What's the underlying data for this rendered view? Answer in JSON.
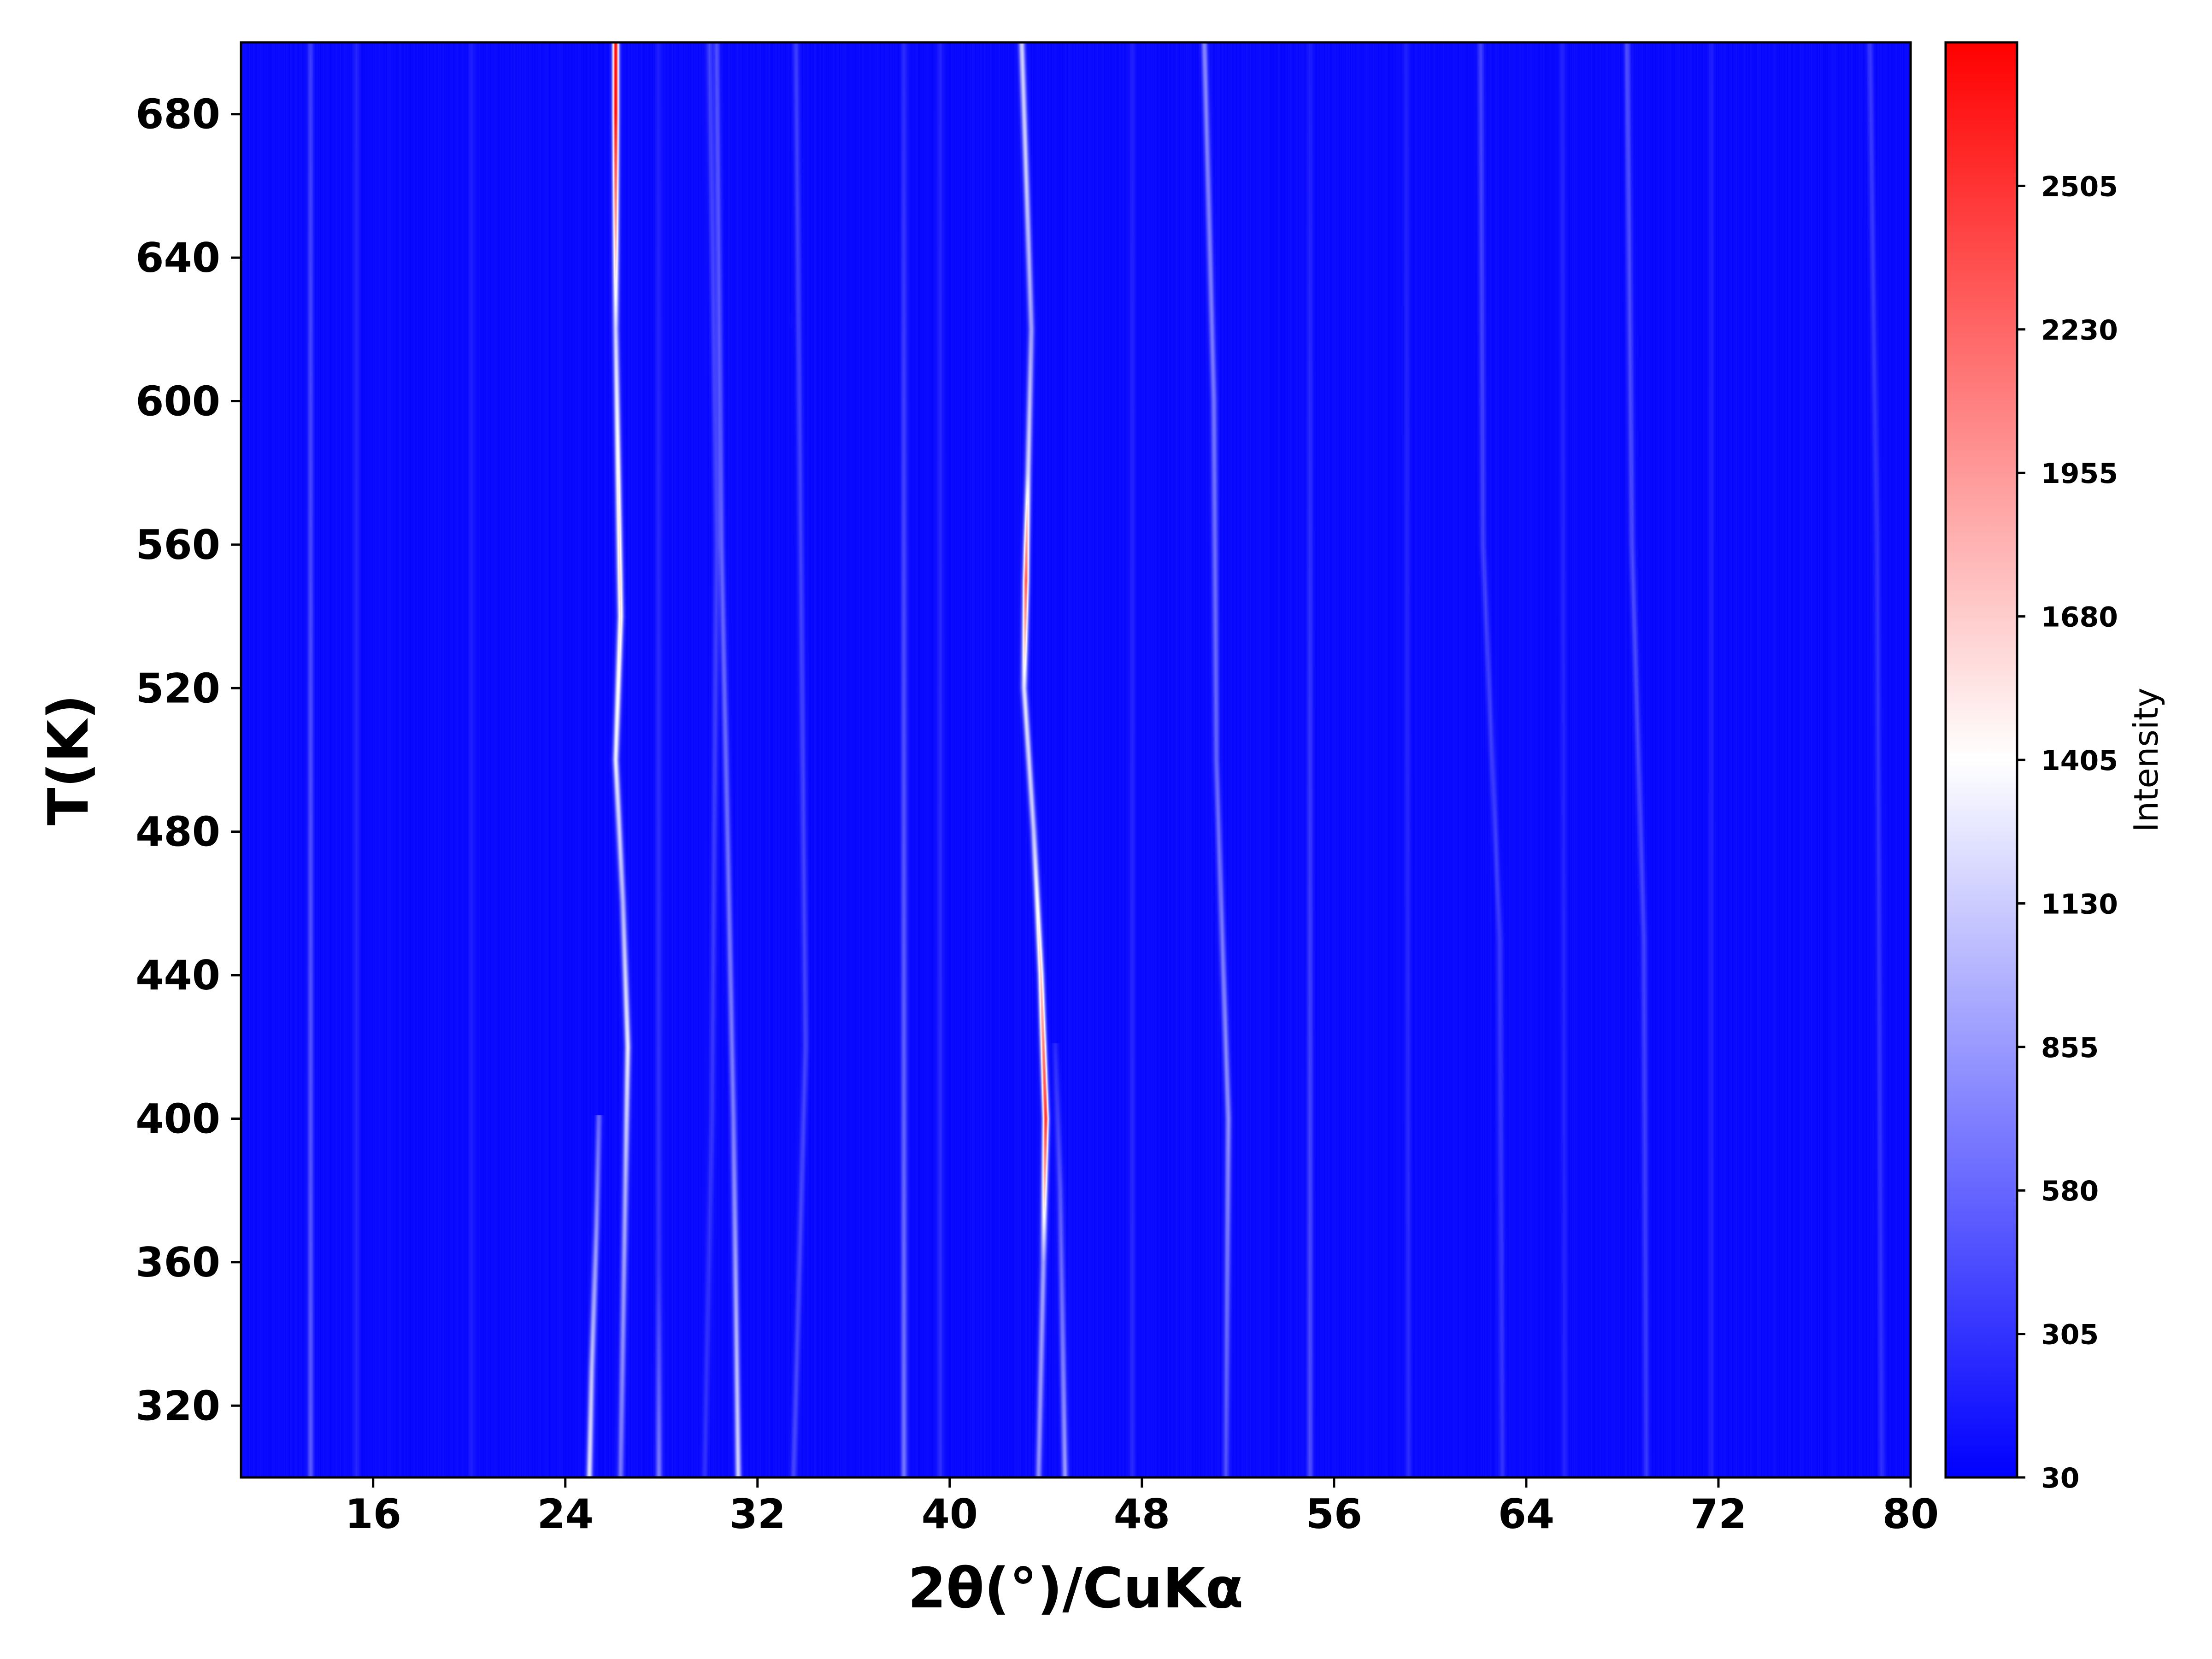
{
  "chart_data": {
    "type": "heatmap",
    "title": "",
    "xlabel": "2θ(°)/CuKα",
    "ylabel": "T(K)",
    "xlim": [
      10.5,
      80
    ],
    "ylim": [
      300,
      700
    ],
    "x_ticks": [
      16,
      24,
      32,
      40,
      48,
      56,
      64,
      72,
      80
    ],
    "y_ticks": [
      320,
      360,
      400,
      440,
      480,
      520,
      560,
      600,
      640,
      680
    ],
    "grid": false,
    "colormap": "bwr",
    "colors": {
      "low": "#0000ff",
      "mid": "#ffffff",
      "high": "#ff0000"
    },
    "colorbar": {
      "label": "Intensity",
      "range": [
        30,
        2780
      ],
      "ticks": [
        30,
        305,
        580,
        855,
        1130,
        1405,
        1680,
        1955,
        2230,
        2505
      ]
    },
    "baseline_intensity": 80,
    "peaks": [
      {
        "path": [
          [
            300,
            13.4
          ],
          [
            700,
            13.4
          ]
        ],
        "intensity": [
          [
            300,
            500
          ],
          [
            700,
            350
          ]
        ]
      },
      {
        "path": [
          [
            300,
            15.3
          ],
          [
            700,
            15.3
          ]
        ],
        "intensity": [
          [
            300,
            230
          ],
          [
            700,
            220
          ]
        ]
      },
      {
        "path": [
          [
            300,
            20.1
          ],
          [
            700,
            20.1
          ]
        ],
        "intensity": [
          [
            300,
            200
          ],
          [
            700,
            200
          ]
        ]
      },
      {
        "path": [
          [
            300,
            25.0
          ],
          [
            330,
            25.1
          ],
          [
            370,
            25.3
          ],
          [
            400,
            25.4
          ]
        ],
        "intensity": [
          [
            300,
            1250
          ],
          [
            400,
            600
          ]
        ]
      },
      {
        "path": [
          [
            300,
            26.3
          ],
          [
            380,
            26.5
          ],
          [
            420,
            26.6
          ],
          [
            460,
            26.4
          ],
          [
            500,
            26.1
          ],
          [
            540,
            26.3
          ],
          [
            580,
            26.2
          ],
          [
            620,
            26.1
          ],
          [
            700,
            26.1
          ]
        ],
        "intensity": [
          [
            300,
            650
          ],
          [
            380,
            950
          ],
          [
            420,
            1300
          ],
          [
            460,
            1000
          ],
          [
            520,
            1450
          ],
          [
            550,
            1600
          ],
          [
            580,
            1500
          ],
          [
            620,
            1150
          ],
          [
            680,
            2700
          ],
          [
            700,
            2700
          ]
        ]
      },
      {
        "path": [
          [
            300,
            27.9
          ],
          [
            700,
            27.9
          ]
        ],
        "intensity": [
          [
            300,
            700
          ],
          [
            360,
            300
          ],
          [
            700,
            180
          ]
        ]
      },
      {
        "path": [
          [
            300,
            29.8
          ],
          [
            400,
            30.1
          ],
          [
            560,
            30.3
          ],
          [
            700,
            30.0
          ]
        ],
        "intensity": [
          [
            300,
            280
          ],
          [
            700,
            400
          ]
        ]
      },
      {
        "path": [
          [
            300,
            31.2
          ],
          [
            400,
            31.0
          ],
          [
            560,
            30.5
          ],
          [
            700,
            30.3
          ]
        ],
        "intensity": [
          [
            300,
            1150
          ],
          [
            400,
            700
          ],
          [
            600,
            500
          ],
          [
            700,
            450
          ]
        ]
      },
      {
        "path": [
          [
            300,
            33.5
          ],
          [
            420,
            34.0
          ],
          [
            560,
            33.8
          ],
          [
            700,
            33.6
          ]
        ],
        "intensity": [
          [
            300,
            400
          ],
          [
            700,
            350
          ]
        ]
      },
      {
        "path": [
          [
            300,
            38.1
          ],
          [
            700,
            38.1
          ]
        ],
        "intensity": [
          [
            300,
            650
          ],
          [
            700,
            250
          ]
        ]
      },
      {
        "path": [
          [
            300,
            39.6
          ],
          [
            700,
            39.6
          ]
        ],
        "intensity": [
          [
            300,
            280
          ],
          [
            700,
            220
          ]
        ]
      },
      {
        "path": [
          [
            300,
            43.7
          ],
          [
            360,
            43.9
          ],
          [
            400,
            44.0
          ],
          [
            440,
            43.8
          ],
          [
            480,
            43.5
          ],
          [
            520,
            43.1
          ],
          [
            560,
            43.2
          ],
          [
            620,
            43.4
          ],
          [
            660,
            43.2
          ],
          [
            700,
            43.0
          ]
        ],
        "intensity": [
          [
            300,
            800
          ],
          [
            360,
            900
          ],
          [
            400,
            2500
          ],
          [
            440,
            1700
          ],
          [
            480,
            1100
          ],
          [
            520,
            1250
          ],
          [
            550,
            2300
          ],
          [
            580,
            1200
          ],
          [
            620,
            900
          ],
          [
            660,
            1100
          ],
          [
            700,
            1150
          ]
        ]
      },
      {
        "path": [
          [
            300,
            44.8
          ],
          [
            380,
            44.6
          ],
          [
            420,
            44.4
          ]
        ],
        "intensity": [
          [
            300,
            850
          ],
          [
            380,
            500
          ],
          [
            420,
            250
          ]
        ]
      },
      {
        "path": [
          [
            300,
            47.6
          ],
          [
            700,
            47.6
          ]
        ],
        "intensity": [
          [
            300,
            250
          ],
          [
            700,
            200
          ]
        ]
      },
      {
        "path": [
          [
            300,
            51.5
          ],
          [
            400,
            51.6
          ],
          [
            500,
            51.1
          ],
          [
            600,
            51.0
          ],
          [
            700,
            50.6
          ]
        ],
        "intensity": [
          [
            300,
            450
          ],
          [
            400,
            800
          ],
          [
            500,
            550
          ],
          [
            600,
            650
          ],
          [
            700,
            750
          ]
        ]
      },
      {
        "path": [
          [
            300,
            55.0
          ],
          [
            700,
            55.0
          ]
        ],
        "intensity": [
          [
            300,
            450
          ],
          [
            700,
            180
          ]
        ]
      },
      {
        "path": [
          [
            300,
            59.1
          ],
          [
            700,
            59.0
          ]
        ],
        "intensity": [
          [
            300,
            250
          ],
          [
            700,
            200
          ]
        ]
      },
      {
        "path": [
          [
            300,
            63.0
          ],
          [
            450,
            62.9
          ],
          [
            560,
            62.2
          ],
          [
            700,
            62.1
          ]
        ],
        "intensity": [
          [
            300,
            300
          ],
          [
            500,
            350
          ],
          [
            700,
            380
          ]
        ]
      },
      {
        "path": [
          [
            300,
            65.6
          ],
          [
            700,
            65.5
          ]
        ],
        "intensity": [
          [
            300,
            230
          ],
          [
            700,
            220
          ]
        ]
      },
      {
        "path": [
          [
            300,
            69.0
          ],
          [
            450,
            68.9
          ],
          [
            560,
            68.4
          ],
          [
            700,
            68.2
          ]
        ],
        "intensity": [
          [
            300,
            320
          ],
          [
            500,
            400
          ],
          [
            700,
            450
          ]
        ]
      },
      {
        "path": [
          [
            300,
            71.7
          ],
          [
            700,
            71.7
          ]
        ],
        "intensity": [
          [
            300,
            220
          ],
          [
            700,
            200
          ]
        ]
      },
      {
        "path": [
          [
            300,
            78.8
          ],
          [
            560,
            78.6
          ],
          [
            700,
            78.3
          ]
        ],
        "intensity": [
          [
            300,
            280
          ],
          [
            600,
            300
          ],
          [
            700,
            330
          ]
        ]
      }
    ]
  }
}
